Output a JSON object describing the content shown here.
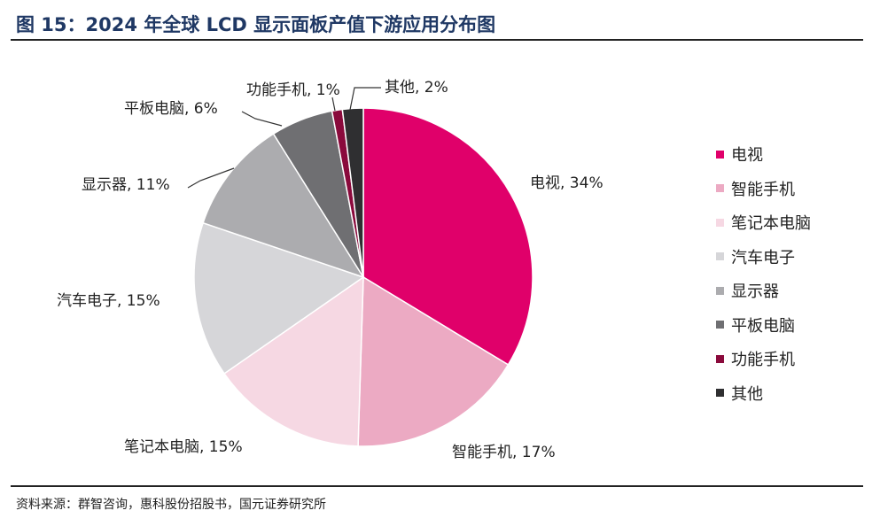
{
  "figure": {
    "title": "图 15：2024 年全球 LCD 显示面板产值下游应用分布图",
    "source": "资料来源：群智咨询，惠科股份招股书，国元证券研究所"
  },
  "chart_data": {
    "type": "pie",
    "title": "2024 年全球 LCD 显示面板产值下游应用分布图",
    "unit": "%",
    "start": "12 o'clock, clockwise",
    "slices": [
      {
        "name": "电视",
        "value": 34,
        "label": "电视, 34%",
        "color": "#e0006a"
      },
      {
        "name": "智能手机",
        "value": 17,
        "label": "智能手机, 17%",
        "color": "#ecaac3"
      },
      {
        "name": "笔记本电脑",
        "value": 15,
        "label": "笔记本电脑, 15%",
        "color": "#f6d8e3"
      },
      {
        "name": "汽车电子",
        "value": 15,
        "label": "汽车电子, 15%",
        "color": "#d6d6d9"
      },
      {
        "name": "显示器",
        "value": 11,
        "label": "显示器, 11%",
        "color": "#acacaf"
      },
      {
        "name": "平板电脑",
        "value": 6,
        "label": "平板电脑, 6%",
        "color": "#6f6f72"
      },
      {
        "name": "功能手机",
        "value": 1,
        "label": "功能手机, 1%",
        "color": "#8a0a3c"
      },
      {
        "name": "其他",
        "value": 2,
        "label": "其他, 2%",
        "color": "#2f2f31"
      }
    ],
    "legend": {
      "position": "right"
    }
  }
}
